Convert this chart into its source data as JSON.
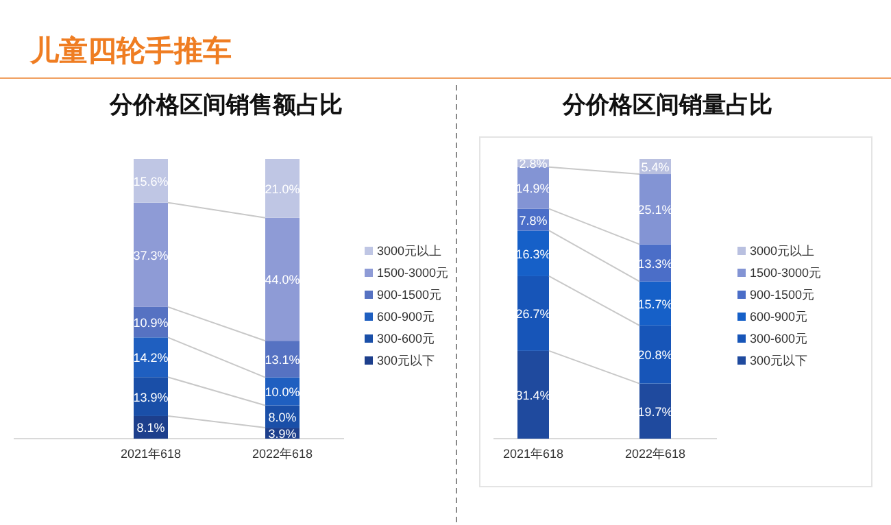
{
  "chart_data": [
    {
      "type": "bar",
      "stacked": true,
      "legend": "right",
      "title": "分价格区间销售额占比",
      "annotations": [
        "儿童四轮手推车"
      ],
      "categories": [
        "2021年618",
        "2022年618"
      ],
      "series": [
        {
          "name": "300元以下",
          "color": "#1d3f8c",
          "values": [
            8.1,
            3.9
          ],
          "value_labels": [
            "8.1%",
            "3.9%"
          ]
        },
        {
          "name": "300-600元",
          "color": "#1a4fa8",
          "values": [
            13.9,
            8.0
          ],
          "value_labels": [
            "13.9%",
            "8.0%"
          ]
        },
        {
          "name": "600-900元",
          "color": "#1f5fc0",
          "values": [
            14.2,
            10.0
          ],
          "value_labels": [
            "14.2%",
            "10.0%"
          ]
        },
        {
          "name": "900-1500元",
          "color": "#5672c2",
          "values": [
            10.9,
            13.1
          ],
          "value_labels": [
            "10.9%",
            "13.1%"
          ]
        },
        {
          "name": "1500-3000元",
          "color": "#8e9bd6",
          "values": [
            37.3,
            44.0
          ],
          "value_labels": [
            "37.3%",
            "44.0%"
          ]
        },
        {
          "name": "3000元以上",
          "color": "#bfc6e4",
          "values": [
            15.6,
            21.0
          ],
          "value_labels": [
            "15.6%",
            "21.0%"
          ]
        }
      ]
    },
    {
      "type": "bar",
      "stacked": true,
      "legend": "right",
      "title": "分价格区间销量占比",
      "categories": [
        "2021年618",
        "2022年618"
      ],
      "series": [
        {
          "name": "300元以下",
          "color": "#1f4a9e",
          "values": [
            31.4,
            19.7
          ],
          "value_labels": [
            "31.4%",
            "19.7%"
          ]
        },
        {
          "name": "300-600元",
          "color": "#1755b8",
          "values": [
            26.7,
            20.8
          ],
          "value_labels": [
            "26.7%",
            "20.8%"
          ]
        },
        {
          "name": "600-900元",
          "color": "#1660c8",
          "values": [
            16.3,
            15.7
          ],
          "value_labels": [
            "16.3%",
            "15.7%"
          ]
        },
        {
          "name": "900-1500元",
          "color": "#4b6ec8",
          "values": [
            7.8,
            13.3
          ],
          "value_labels": [
            "7.8%",
            "13.3%"
          ]
        },
        {
          "name": "1500-3000元",
          "color": "#8394d4",
          "values": [
            14.9,
            25.1
          ],
          "value_labels": [
            "14.9%",
            "25.1%"
          ]
        },
        {
          "name": "3000元以上",
          "color": "#b9c0e0",
          "values": [
            2.8,
            5.4
          ],
          "value_labels": [
            "2.8%",
            "5.4%"
          ]
        }
      ]
    }
  ]
}
